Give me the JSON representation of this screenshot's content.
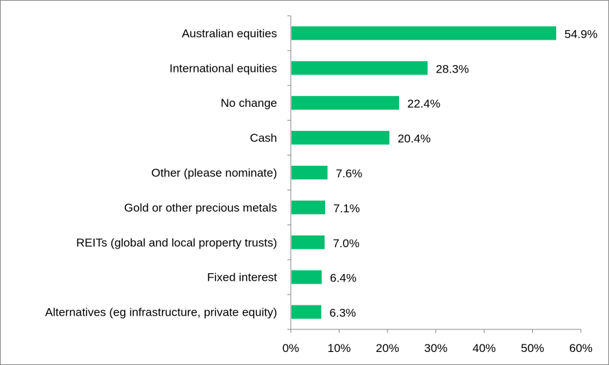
{
  "chart_data": {
    "type": "bar",
    "orientation": "horizontal",
    "categories": [
      "Australian equities",
      "International equities",
      "No change",
      "Cash",
      "Other (please nominate)",
      "Gold or other precious metals",
      "REITs (global and local property trusts)",
      "Fixed interest",
      "Alternatives (eg infrastructure, private equity)"
    ],
    "values": [
      54.9,
      28.3,
      22.4,
      20.4,
      7.6,
      7.1,
      7.0,
      6.4,
      6.3
    ],
    "value_labels": [
      "54.9%",
      "28.3%",
      "22.4%",
      "20.4%",
      "7.6%",
      "7.1%",
      "7.0%",
      "6.4%",
      "6.3%"
    ],
    "xlim": [
      0,
      60
    ],
    "xticks": [
      0,
      10,
      20,
      30,
      40,
      50,
      60
    ],
    "xtick_labels": [
      "0%",
      "10%",
      "20%",
      "30%",
      "40%",
      "50%",
      "60%"
    ],
    "title": "",
    "xlabel": "",
    "ylabel": "",
    "grid": false,
    "legend": "none",
    "bar_color": "#00BF6F",
    "axis_color": "#868686"
  }
}
